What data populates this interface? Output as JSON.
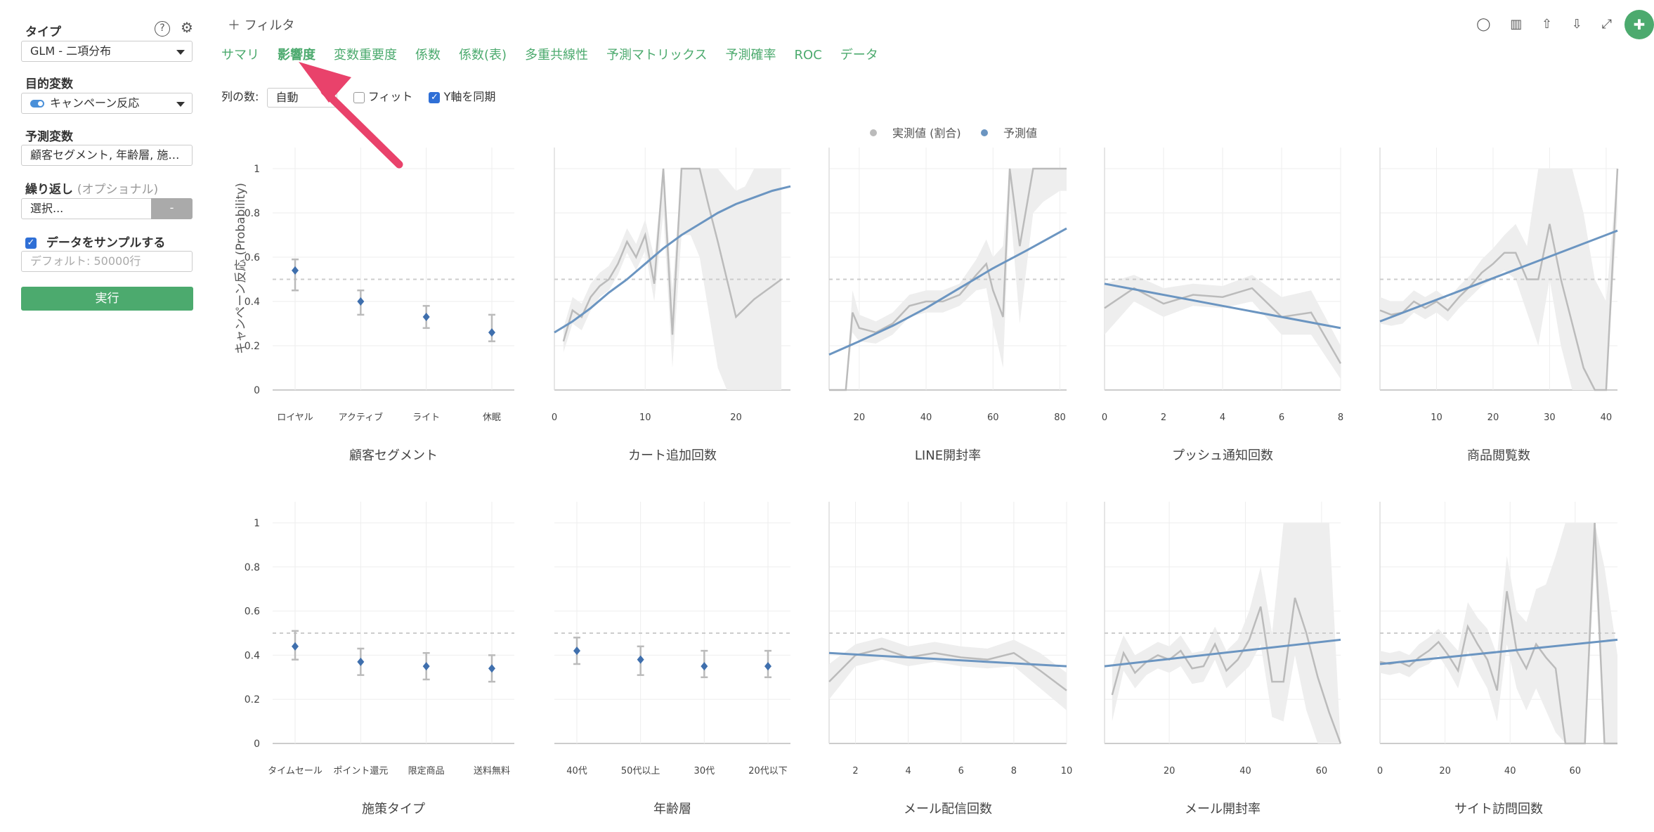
{
  "sidebar": {
    "type_label": "タイプ",
    "type_value": "GLM - 二項分布",
    "target_label": "目的変数",
    "target_value": "キャンペーン反応",
    "predictor_label": "予測変数",
    "predictor_value": "顧客セグメント, 年齢層, 施…",
    "repeat_label": "繰り返し",
    "repeat_optional": "(オプショナル)",
    "repeat_placeholder": "選択...",
    "repeat_dash": "-",
    "sample_label": "データをサンプルする",
    "sample_placeholder": "デフォルト: 50000行",
    "run_label": "実行"
  },
  "topbar": {
    "filter_label": "フィルタ",
    "tabs": [
      "サマリ",
      "影響度",
      "変数重要度",
      "係数",
      "係数(表)",
      "多重共線性",
      "予測マトリックス",
      "予測確率",
      "ROC",
      "データ"
    ],
    "active_tab": 1
  },
  "options": {
    "columns_label": "列の数:",
    "columns_value": "自動",
    "fit_label": "フィット",
    "sync_label": "Y軸を同期"
  },
  "chart_data": {
    "type": "line",
    "legend": [
      "実測値 (割合)",
      "予測値"
    ],
    "legend_position": "top-center",
    "ylabel": "キャンペーン反応 (Probability)",
    "ylim": [
      0,
      1
    ],
    "yticks": [
      0,
      0.2,
      0.4,
      0.6,
      0.8,
      1
    ],
    "reference_line": 0.5,
    "colors": {
      "actual": "#bbbbbb",
      "predicted": "#6b95c1",
      "band": "#eeeeee",
      "ref": "#cccccc"
    },
    "panels": [
      {
        "title": "顧客セグメント",
        "kind": "categorical",
        "categories": [
          "ロイヤル",
          "アクティブ",
          "ライト",
          "休眠"
        ],
        "predicted": [
          0.54,
          0.4,
          0.33,
          0.26
        ],
        "ci_low": [
          0.45,
          0.34,
          0.28,
          0.22
        ],
        "ci_high": [
          0.59,
          0.45,
          0.38,
          0.34
        ]
      },
      {
        "title": "カート追加回数",
        "kind": "numeric",
        "xlim": [
          0,
          26
        ],
        "xticks": [
          0,
          10,
          20
        ],
        "actual_x": [
          1,
          2,
          3,
          4,
          5,
          6,
          7,
          8,
          9,
          10,
          11,
          12,
          13,
          14,
          15,
          16,
          17,
          18,
          19,
          20,
          21,
          22,
          23,
          24,
          25
        ],
        "actual": [
          0.22,
          0.36,
          0.33,
          0.42,
          0.47,
          0.5,
          0.57,
          0.67,
          0.6,
          0.7,
          0.48,
          1.0,
          0.25,
          1.0,
          1.0,
          1.0,
          0.83,
          0.67,
          0.5,
          0.33,
          0.37,
          0.41,
          0.44,
          0.47,
          0.5
        ],
        "band_low": [
          0.17,
          0.3,
          0.27,
          0.36,
          0.42,
          0.45,
          0.52,
          0.62,
          0.54,
          0.63,
          0.4,
          0.8,
          0.1,
          0.7,
          0.7,
          0.6,
          0.35,
          0.1,
          0.0,
          0.0,
          0.0,
          0.0,
          0.0,
          0.0,
          0.0
        ],
        "band_high": [
          0.28,
          0.42,
          0.39,
          0.48,
          0.53,
          0.56,
          0.63,
          0.73,
          0.66,
          0.77,
          0.6,
          1.0,
          0.45,
          1.0,
          1.0,
          1.0,
          1.0,
          1.0,
          0.95,
          0.9,
          0.92,
          1.0,
          1.0,
          1.0,
          1.0
        ],
        "pred_x": [
          0,
          2,
          4,
          6,
          8,
          10,
          12,
          14,
          16,
          18,
          20,
          22,
          24,
          26
        ],
        "predicted": [
          0.26,
          0.31,
          0.37,
          0.44,
          0.5,
          0.57,
          0.64,
          0.7,
          0.75,
          0.8,
          0.84,
          0.87,
          0.9,
          0.92
        ]
      },
      {
        "title": "LINE開封率",
        "kind": "numeric",
        "xlim": [
          11,
          82
        ],
        "xticks": [
          20,
          40,
          60,
          80
        ],
        "actual_x": [
          11,
          16,
          18,
          20,
          25,
          30,
          35,
          40,
          45,
          50,
          55,
          58,
          60,
          63,
          65,
          68,
          72,
          75,
          80,
          82
        ],
        "actual": [
          0.0,
          0.0,
          0.35,
          0.28,
          0.26,
          0.3,
          0.38,
          0.4,
          0.4,
          0.43,
          0.52,
          0.57,
          0.45,
          0.33,
          1.0,
          0.65,
          1.0,
          1.0,
          1.0,
          1.0
        ],
        "band_low": [
          0.0,
          0.0,
          0.26,
          0.22,
          0.21,
          0.25,
          0.33,
          0.35,
          0.35,
          0.38,
          0.45,
          0.46,
          0.3,
          0.1,
          0.85,
          0.3,
          0.8,
          0.85,
          0.9,
          0.9
        ],
        "band_high": [
          0.0,
          0.0,
          0.45,
          0.34,
          0.31,
          0.35,
          0.43,
          0.45,
          0.45,
          0.48,
          0.59,
          0.68,
          0.6,
          0.65,
          1.0,
          1.0,
          1.0,
          1.0,
          1.0,
          1.0
        ],
        "pred_x": [
          11,
          20,
          30,
          40,
          50,
          60,
          70,
          82
        ],
        "predicted": [
          0.16,
          0.22,
          0.29,
          0.37,
          0.46,
          0.55,
          0.63,
          0.73
        ]
      },
      {
        "title": "プッシュ通知回数",
        "kind": "numeric",
        "xlim": [
          0,
          8
        ],
        "xticks": [
          0,
          2,
          4,
          6,
          8
        ],
        "actual_x": [
          0,
          1,
          2,
          3,
          4,
          5,
          6,
          7,
          8
        ],
        "actual": [
          0.37,
          0.46,
          0.39,
          0.43,
          0.42,
          0.46,
          0.33,
          0.35,
          0.12
        ],
        "band_low": [
          0.25,
          0.4,
          0.33,
          0.38,
          0.37,
          0.4,
          0.25,
          0.25,
          0.05
        ],
        "band_high": [
          0.48,
          0.52,
          0.46,
          0.48,
          0.47,
          0.52,
          0.42,
          0.45,
          0.2
        ],
        "pred_x": [
          0,
          8
        ],
        "predicted": [
          0.48,
          0.28
        ]
      },
      {
        "title": "商品閲覧数",
        "kind": "numeric",
        "xlim": [
          0,
          42
        ],
        "xticks": [
          10,
          20,
          30,
          40
        ],
        "actual_x": [
          0,
          2,
          4,
          6,
          8,
          10,
          12,
          14,
          16,
          18,
          20,
          22,
          24,
          26,
          28,
          30,
          32,
          34,
          36,
          38,
          40,
          42
        ],
        "actual": [
          0.36,
          0.34,
          0.35,
          0.4,
          0.37,
          0.4,
          0.36,
          0.42,
          0.47,
          0.53,
          0.57,
          0.62,
          0.62,
          0.5,
          0.5,
          0.75,
          0.5,
          0.3,
          0.1,
          0.0,
          0.0,
          1.0
        ],
        "band_low": [
          0.3,
          0.29,
          0.3,
          0.35,
          0.32,
          0.35,
          0.31,
          0.37,
          0.42,
          0.47,
          0.5,
          0.54,
          0.5,
          0.35,
          0.2,
          0.5,
          0.2,
          0.0,
          0.0,
          0.0,
          0.0,
          0.8
        ],
        "band_high": [
          0.42,
          0.4,
          0.4,
          0.45,
          0.42,
          0.45,
          0.41,
          0.47,
          0.52,
          0.59,
          0.64,
          0.7,
          0.75,
          0.65,
          1.0,
          1.0,
          1.0,
          1.0,
          0.8,
          0.5,
          0.4,
          1.0
        ],
        "pred_x": [
          0,
          42
        ],
        "predicted": [
          0.31,
          0.72
        ]
      },
      {
        "title": "施策タイプ",
        "kind": "categorical",
        "categories": [
          "タイムセール",
          "ポイント還元",
          "限定商品",
          "送料無料"
        ],
        "predicted": [
          0.44,
          0.37,
          0.35,
          0.34
        ],
        "ci_low": [
          0.38,
          0.31,
          0.29,
          0.28
        ],
        "ci_high": [
          0.51,
          0.43,
          0.41,
          0.4
        ]
      },
      {
        "title": "年齢層",
        "kind": "categorical",
        "categories": [
          "40代",
          "50代以上",
          "30代",
          "20代以下"
        ],
        "predicted": [
          0.42,
          0.38,
          0.35,
          0.35
        ],
        "ci_low": [
          0.36,
          0.31,
          0.3,
          0.3
        ],
        "ci_high": [
          0.48,
          0.44,
          0.42,
          0.42
        ]
      },
      {
        "title": "メール配信回数",
        "kind": "numeric",
        "xlim": [
          1,
          10
        ],
        "xticks": [
          2,
          4,
          6,
          8,
          10
        ],
        "actual_x": [
          1,
          2,
          3,
          4,
          5,
          6,
          7,
          8,
          9,
          10
        ],
        "actual": [
          0.28,
          0.4,
          0.43,
          0.39,
          0.41,
          0.39,
          0.38,
          0.41,
          0.33,
          0.24
        ],
        "band_low": [
          0.2,
          0.35,
          0.38,
          0.35,
          0.37,
          0.35,
          0.34,
          0.35,
          0.25,
          0.15
        ],
        "band_high": [
          0.36,
          0.45,
          0.48,
          0.44,
          0.46,
          0.44,
          0.43,
          0.47,
          0.41,
          0.32
        ],
        "pred_x": [
          1,
          10
        ],
        "predicted": [
          0.41,
          0.35
        ]
      },
      {
        "title": "メール開封率",
        "kind": "numeric",
        "xlim": [
          3,
          65
        ],
        "xticks": [
          20,
          40,
          60
        ],
        "actual_x": [
          5,
          8,
          11,
          14,
          17,
          20,
          23,
          26,
          29,
          32,
          35,
          38,
          41,
          44,
          47,
          50,
          53,
          56,
          59,
          62,
          65
        ],
        "actual": [
          0.22,
          0.41,
          0.32,
          0.37,
          0.4,
          0.38,
          0.42,
          0.34,
          0.35,
          0.45,
          0.33,
          0.38,
          0.47,
          0.62,
          0.28,
          0.28,
          0.66,
          0.5,
          0.3,
          0.14,
          0.0
        ],
        "band_low": [
          0.1,
          0.33,
          0.25,
          0.31,
          0.34,
          0.32,
          0.35,
          0.27,
          0.28,
          0.38,
          0.25,
          0.3,
          0.35,
          0.45,
          0.12,
          0.1,
          0.4,
          0.15,
          0.0,
          0.0,
          0.0
        ],
        "band_high": [
          0.35,
          0.49,
          0.4,
          0.43,
          0.46,
          0.44,
          0.49,
          0.41,
          0.42,
          0.53,
          0.42,
          0.47,
          0.6,
          0.8,
          0.5,
          1.0,
          1.0,
          1.0,
          1.0,
          1.0,
          0.0
        ],
        "pred_x": [
          3,
          65
        ],
        "predicted": [
          0.35,
          0.47
        ]
      },
      {
        "title": "サイト訪問回数",
        "kind": "numeric",
        "xlim": [
          0,
          73
        ],
        "xticks": [
          0,
          20,
          40,
          60
        ],
        "actual_x": [
          0,
          3,
          6,
          9,
          12,
          15,
          18,
          21,
          24,
          27,
          30,
          33,
          36,
          39,
          42,
          45,
          48,
          51,
          54,
          57,
          60,
          63,
          66,
          69,
          73
        ],
        "actual": [
          0.37,
          0.36,
          0.37,
          0.35,
          0.39,
          0.42,
          0.46,
          0.4,
          0.33,
          0.53,
          0.45,
          0.38,
          0.24,
          0.69,
          0.42,
          0.34,
          0.45,
          0.39,
          0.34,
          0.0,
          0.0,
          0.0,
          1.0,
          0.0,
          0.0
        ],
        "band_low": [
          0.32,
          0.31,
          0.32,
          0.3,
          0.34,
          0.36,
          0.4,
          0.33,
          0.25,
          0.42,
          0.33,
          0.25,
          0.1,
          0.45,
          0.25,
          0.15,
          0.25,
          0.15,
          0.05,
          0.0,
          0.0,
          0.0,
          0.8,
          0.0,
          0.0
        ],
        "band_high": [
          0.42,
          0.41,
          0.42,
          0.4,
          0.45,
          0.48,
          0.52,
          0.47,
          0.42,
          0.64,
          0.57,
          0.52,
          0.4,
          0.85,
          0.6,
          0.55,
          0.7,
          0.72,
          0.85,
          1.0,
          1.0,
          1.0,
          1.0,
          0.8,
          0.4
        ],
        "pred_x": [
          0,
          73
        ],
        "predicted": [
          0.36,
          0.47
        ]
      }
    ]
  }
}
